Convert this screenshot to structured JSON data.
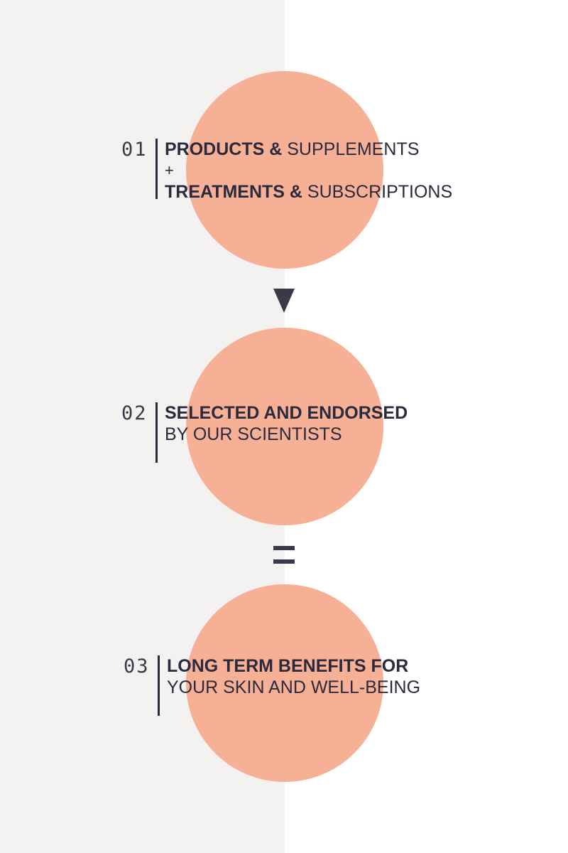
{
  "steps": [
    {
      "number": "01",
      "lines": [
        {
          "bold": "PRODUCTS &",
          "light": " SUPPLEMENTS"
        },
        {
          "plus": "+"
        },
        {
          "bold": "TREATMENTS &",
          "light": " SUBSCRIPTIONS"
        }
      ]
    },
    {
      "number": "02",
      "lines": [
        {
          "bold": "SELECTED AND ENDORSED"
        },
        {
          "light": "BY OUR SCIENTISTS"
        }
      ]
    },
    {
      "number": "03",
      "lines": [
        {
          "bold": "LONG TERM BENEFITS FOR"
        },
        {
          "light": "YOUR SKIN AND WELL-BEING"
        }
      ]
    }
  ],
  "connectors": {
    "first": "down-arrow-icon",
    "second": "equals-icon"
  },
  "colors": {
    "circle": "#f6b096",
    "text": "#2b2a3d",
    "left_panel": "#f4f1f1",
    "background": "#ffffff"
  }
}
